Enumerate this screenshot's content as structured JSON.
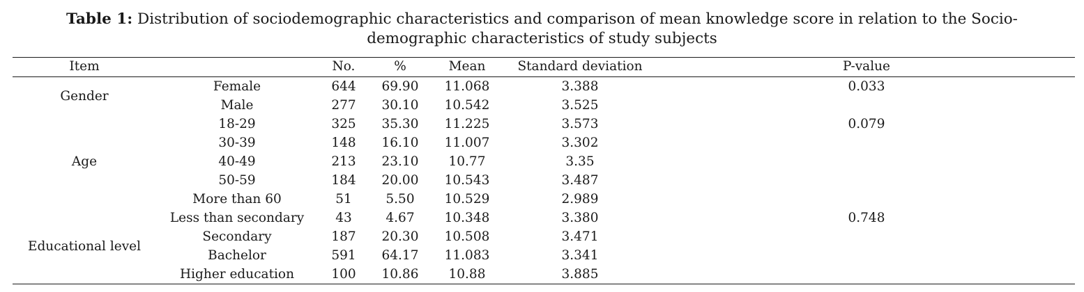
{
  "caption": {
    "label": "Table 1:",
    "line1": "Distribution of sociodemographic characteristics and comparison of mean knowledge score in relation to the Socio-",
    "line2": "demographic characteristics of study subjects"
  },
  "table": {
    "headers": {
      "item": "Item",
      "no": "No.",
      "pct": "%",
      "mean": "Mean",
      "sd": "Standard deviation",
      "p": "P-value"
    },
    "groups": [
      {
        "label": "Gender",
        "p_value": "0.033",
        "rows": [
          {
            "category": "Female",
            "no": "644",
            "pct": "69.90",
            "mean": "11.068",
            "sd": "3.388"
          },
          {
            "category": "Male",
            "no": "277",
            "pct": "30.10",
            "mean": "10.542",
            "sd": "3.525"
          }
        ]
      },
      {
        "label": "Age",
        "p_value": "0.079",
        "rows": [
          {
            "category": "18-29",
            "no": "325",
            "pct": "35.30",
            "mean": "11.225",
            "sd": "3.573"
          },
          {
            "category": "30-39",
            "no": "148",
            "pct": "16.10",
            "mean": "11.007",
            "sd": "3.302"
          },
          {
            "category": "40-49",
            "no": "213",
            "pct": "23.10",
            "mean": "10.77",
            "sd": "3.35"
          },
          {
            "category": "50-59",
            "no": "184",
            "pct": "20.00",
            "mean": "10.543",
            "sd": "3.487"
          },
          {
            "category": "More than 60",
            "no": "51",
            "pct": "5.50",
            "mean": "10.529",
            "sd": "2.989"
          }
        ]
      },
      {
        "label": "Educational level",
        "p_value": "0.748",
        "rows": [
          {
            "category": "Less than secondary",
            "no": "43",
            "pct": "4.67",
            "mean": "10.348",
            "sd": "3.380"
          },
          {
            "category": "Secondary",
            "no": "187",
            "pct": "20.30",
            "mean": "10.508",
            "sd": "3.471"
          },
          {
            "category": "Bachelor",
            "no": "591",
            "pct": "64.17",
            "mean": "11.083",
            "sd": "3.341"
          },
          {
            "category": "Higher education",
            "no": "100",
            "pct": "10.86",
            "mean": "10.88",
            "sd": "3.885"
          }
        ]
      }
    ]
  }
}
